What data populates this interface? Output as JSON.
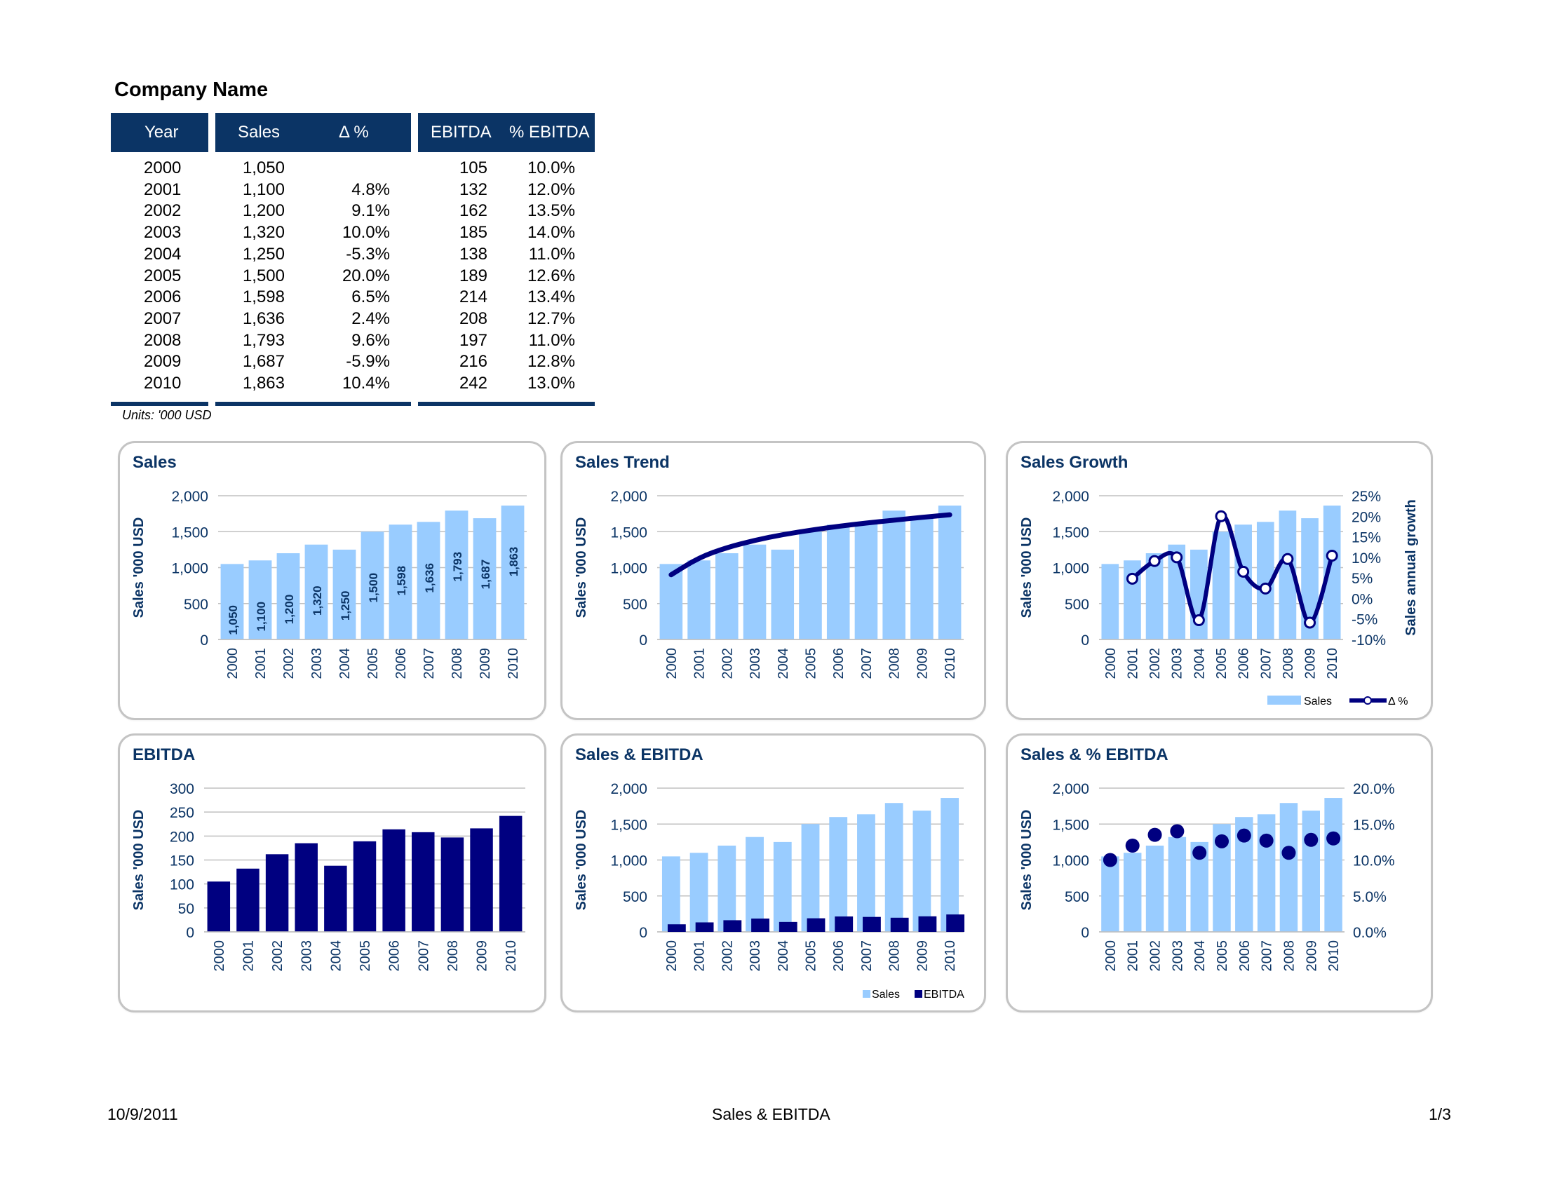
{
  "header": {
    "company": "Company Name"
  },
  "table": {
    "headers": {
      "year": "Year",
      "sales": "Sales",
      "delta": "Δ %",
      "ebitda": "EBITDA",
      "pct_ebitda": "% EBITDA"
    },
    "rows": [
      {
        "year": "2000",
        "sales": "1,050",
        "delta": "",
        "ebitda": "105",
        "pct_ebitda": "10.0%"
      },
      {
        "year": "2001",
        "sales": "1,100",
        "delta": "4.8%",
        "ebitda": "132",
        "pct_ebitda": "12.0%"
      },
      {
        "year": "2002",
        "sales": "1,200",
        "delta": "9.1%",
        "ebitda": "162",
        "pct_ebitda": "13.5%"
      },
      {
        "year": "2003",
        "sales": "1,320",
        "delta": "10.0%",
        "ebitda": "185",
        "pct_ebitda": "14.0%"
      },
      {
        "year": "2004",
        "sales": "1,250",
        "delta": "-5.3%",
        "ebitda": "138",
        "pct_ebitda": "11.0%"
      },
      {
        "year": "2005",
        "sales": "1,500",
        "delta": "20.0%",
        "ebitda": "189",
        "pct_ebitda": "12.6%"
      },
      {
        "year": "2006",
        "sales": "1,598",
        "delta": "6.5%",
        "ebitda": "214",
        "pct_ebitda": "13.4%"
      },
      {
        "year": "2007",
        "sales": "1,636",
        "delta": "2.4%",
        "ebitda": "208",
        "pct_ebitda": "12.7%"
      },
      {
        "year": "2008",
        "sales": "1,793",
        "delta": "9.6%",
        "ebitda": "197",
        "pct_ebitda": "11.0%"
      },
      {
        "year": "2009",
        "sales": "1,687",
        "delta": "-5.9%",
        "ebitda": "216",
        "pct_ebitda": "12.8%"
      },
      {
        "year": "2010",
        "sales": "1,863",
        "delta": "10.4%",
        "ebitda": "242",
        "pct_ebitda": "13.0%"
      }
    ],
    "units": "Units: '000 USD"
  },
  "colors": {
    "navy": "#0b3465",
    "dark_bar": "#000080",
    "light_bar": "#99ccff",
    "grid": "#c0c0c0",
    "panel_border": "#c4c4c4"
  },
  "chart_data": [
    {
      "id": "sales",
      "type": "bar",
      "title": "Sales",
      "categories": [
        "2000",
        "2001",
        "2002",
        "2003",
        "2004",
        "2005",
        "2006",
        "2007",
        "2008",
        "2009",
        "2010"
      ],
      "series": [
        {
          "name": "Sales",
          "values": [
            1050,
            1100,
            1200,
            1320,
            1250,
            1500,
            1598,
            1636,
            1793,
            1687,
            1863
          ]
        }
      ],
      "data_labels": [
        "1,050",
        "1,100",
        "1,200",
        "1,320",
        "1,250",
        "1,500",
        "1,598",
        "1,636",
        "1,793",
        "1,687",
        "1,863"
      ],
      "ylabel": "Sales '000 USD",
      "ylim": [
        0,
        2000
      ],
      "yticks": [
        "0",
        "500",
        "1,000",
        "1,500",
        "2,000"
      ],
      "grid": true,
      "legend": "none"
    },
    {
      "id": "trend",
      "type": "bar",
      "title": "Sales Trend",
      "categories": [
        "2000",
        "2001",
        "2002",
        "2003",
        "2004",
        "2005",
        "2006",
        "2007",
        "2008",
        "2009",
        "2010"
      ],
      "series": [
        {
          "name": "Sales",
          "values": [
            1050,
            1100,
            1200,
            1320,
            1250,
            1500,
            1598,
            1636,
            1793,
            1687,
            1863
          ]
        }
      ],
      "trendline": {
        "type": "logarithmic",
        "values": [
          900,
          1140,
          1280,
          1380,
          1460,
          1520,
          1575,
          1620,
          1660,
          1700,
          1735
        ]
      },
      "ylabel": "Sales '000 USD",
      "ylim": [
        0,
        2000
      ],
      "yticks": [
        "0",
        "500",
        "1,000",
        "1,500",
        "2,000"
      ],
      "grid": true,
      "legend": "none"
    },
    {
      "id": "growth",
      "type": "bar",
      "title": "Sales Growth",
      "categories": [
        "2000",
        "2001",
        "2002",
        "2003",
        "2004",
        "2005",
        "2006",
        "2007",
        "2008",
        "2009",
        "2010"
      ],
      "series": [
        {
          "name": "Sales",
          "values": [
            1050,
            1100,
            1200,
            1320,
            1250,
            1500,
            1598,
            1636,
            1793,
            1687,
            1863
          ]
        },
        {
          "name": "Δ %",
          "type": "line",
          "axis": "right",
          "values": [
            null,
            4.8,
            9.1,
            10.0,
            -5.3,
            20.0,
            6.5,
            2.4,
            9.6,
            -5.9,
            10.4
          ]
        }
      ],
      "ylabel": "Sales '000 USD",
      "ylim": [
        0,
        2000
      ],
      "yticks": [
        "0",
        "500",
        "1,000",
        "1,500",
        "2,000"
      ],
      "y2label": "Sales annual growth",
      "y2lim": [
        -10,
        25
      ],
      "y2ticks": [
        "-10%",
        "-5%",
        "0%",
        "5%",
        "10%",
        "15%",
        "20%",
        "25%"
      ],
      "grid": true,
      "legend": "bottom-right"
    },
    {
      "id": "ebitda",
      "type": "bar",
      "title": "EBITDA",
      "categories": [
        "2000",
        "2001",
        "2002",
        "2003",
        "2004",
        "2005",
        "2006",
        "2007",
        "2008",
        "2009",
        "2010"
      ],
      "series": [
        {
          "name": "EBITDA",
          "values": [
            105,
            132,
            162,
            185,
            138,
            189,
            214,
            208,
            197,
            216,
            242
          ]
        }
      ],
      "ylabel": "Sales '000 USD",
      "ylim": [
        0,
        300
      ],
      "yticks": [
        "0",
        "50",
        "100",
        "150",
        "200",
        "250",
        "300"
      ],
      "grid": true,
      "legend": "none"
    },
    {
      "id": "sales_ebitda",
      "type": "bar",
      "title": "Sales & EBITDA",
      "categories": [
        "2000",
        "2001",
        "2002",
        "2003",
        "2004",
        "2005",
        "2006",
        "2007",
        "2008",
        "2009",
        "2010"
      ],
      "series": [
        {
          "name": "Sales",
          "values": [
            1050,
            1100,
            1200,
            1320,
            1250,
            1500,
            1598,
            1636,
            1793,
            1687,
            1863
          ]
        },
        {
          "name": "EBITDA",
          "values": [
            105,
            132,
            162,
            185,
            138,
            189,
            214,
            208,
            197,
            216,
            242
          ]
        }
      ],
      "ylabel": "Sales '000 USD",
      "ylim": [
        0,
        2000
      ],
      "yticks": [
        "0",
        "500",
        "1,000",
        "1,500",
        "2,000"
      ],
      "grid": true,
      "legend": "bottom-right"
    },
    {
      "id": "sales_pct_ebitda",
      "type": "bar",
      "title": "Sales & % EBITDA",
      "categories": [
        "2000",
        "2001",
        "2002",
        "2003",
        "2004",
        "2005",
        "2006",
        "2007",
        "2008",
        "2009",
        "2010"
      ],
      "series": [
        {
          "name": "Sales",
          "values": [
            1050,
            1100,
            1200,
            1320,
            1250,
            1500,
            1598,
            1636,
            1793,
            1687,
            1863
          ]
        },
        {
          "name": "% EBITDA",
          "type": "scatter",
          "axis": "right",
          "values": [
            10.0,
            12.0,
            13.5,
            14.0,
            11.0,
            12.6,
            13.4,
            12.7,
            11.0,
            12.8,
            13.0
          ]
        }
      ],
      "ylabel": "Sales '000 USD",
      "ylim": [
        0,
        2000
      ],
      "yticks": [
        "0",
        "500",
        "1,000",
        "1,500",
        "2,000"
      ],
      "y2lim": [
        0,
        20
      ],
      "y2ticks": [
        "0.0%",
        "5.0%",
        "10.0%",
        "15.0%",
        "20.0%"
      ],
      "grid": true,
      "legend": "none"
    }
  ],
  "footer": {
    "date": "10/9/2011",
    "title": "Sales & EBITDA",
    "page": "1/3"
  }
}
